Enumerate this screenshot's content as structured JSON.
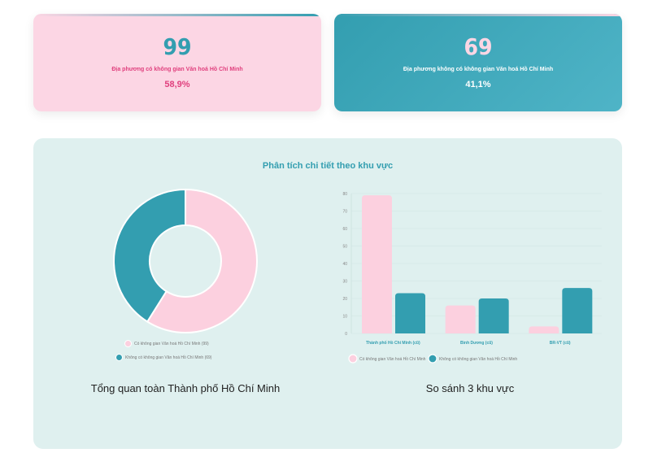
{
  "cards": [
    {
      "value": "99",
      "label": "Địa phương có không gian Văn hoá Hồ Chí Minh",
      "percent": "58,9%"
    },
    {
      "value": "69",
      "label": "Địa phương không có không gian Văn hoá Hồ Chí Minh",
      "percent": "41,1%"
    }
  ],
  "panel": {
    "title": "Phân tích chi tiết theo khu vực",
    "donut_caption": "Tổng quan toàn Thành phố Hồ Chí Minh",
    "bar_caption": "So sánh 3 khu vực"
  },
  "colors": {
    "pink": "#fcd0df",
    "teal": "#339eb0"
  },
  "chart_data": [
    {
      "type": "pie",
      "donut": true,
      "categories": [
        "Có không gian Văn hoá Hồ Chí Minh (99)",
        "Không có không gian Văn hoá Hồ Chí Minh (69)"
      ],
      "values": [
        99,
        69
      ]
    },
    {
      "type": "bar",
      "categories": [
        "Thành phố Hồ Chí Minh (cũ)",
        "Bình Dương (cũ)",
        "BR-VT (cũ)"
      ],
      "series": [
        {
          "name": "Có không gian Văn hoá Hồ Chí Minh",
          "values": [
            79,
            16,
            4
          ]
        },
        {
          "name": "Không có không gian Văn hoá Hồ Chí Minh",
          "values": [
            23,
            20,
            26
          ]
        }
      ],
      "ylim": [
        0,
        80
      ],
      "yticks": [
        "0",
        "10",
        "20",
        "30",
        "40",
        "50",
        "60",
        "70",
        "80"
      ],
      "grid": true,
      "legend": "bottom"
    }
  ]
}
